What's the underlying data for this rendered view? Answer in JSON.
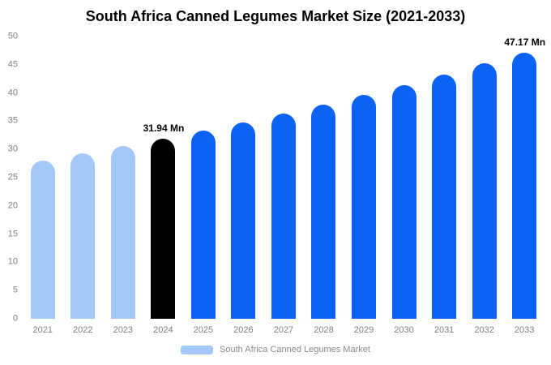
{
  "chart_data": {
    "type": "bar",
    "title": "South Africa Canned Legumes Market Size (2021-2033)",
    "categories": [
      "2021",
      "2022",
      "2023",
      "2024",
      "2025",
      "2026",
      "2027",
      "2028",
      "2029",
      "2030",
      "2031",
      "2032",
      "2033"
    ],
    "values": [
      28.05,
      29.29,
      30.59,
      31.94,
      33.36,
      34.84,
      36.38,
      38.0,
      39.68,
      41.44,
      43.28,
      45.19,
      47.17
    ],
    "bar_colors": [
      "#a4c9f8",
      "#a4c9f8",
      "#a4c9f8",
      "#000000",
      "#0b63f6",
      "#0b63f6",
      "#0b63f6",
      "#0b63f6",
      "#0b63f6",
      "#0b63f6",
      "#0b63f6",
      "#0b63f6",
      "#0b63f6"
    ],
    "annotations": [
      {
        "index": 3,
        "text": "31.94 Mn"
      },
      {
        "index": 12,
        "text": "47.17 Mn"
      }
    ],
    "xlabel": "",
    "ylabel": "",
    "ylim": [
      0,
      50
    ],
    "yticks": [
      0,
      5,
      10,
      15,
      20,
      25,
      30,
      35,
      40,
      45,
      50
    ],
    "grid": false,
    "legend": "South Africa Canned Legumes Market",
    "legend_position": "bottom"
  },
  "colors": {
    "historical_bar": "#a4c9f8",
    "highlight_bar": "#000000",
    "forecast_bar": "#0b63f6",
    "tick_text": "#808080",
    "title_text": "#000000"
  }
}
